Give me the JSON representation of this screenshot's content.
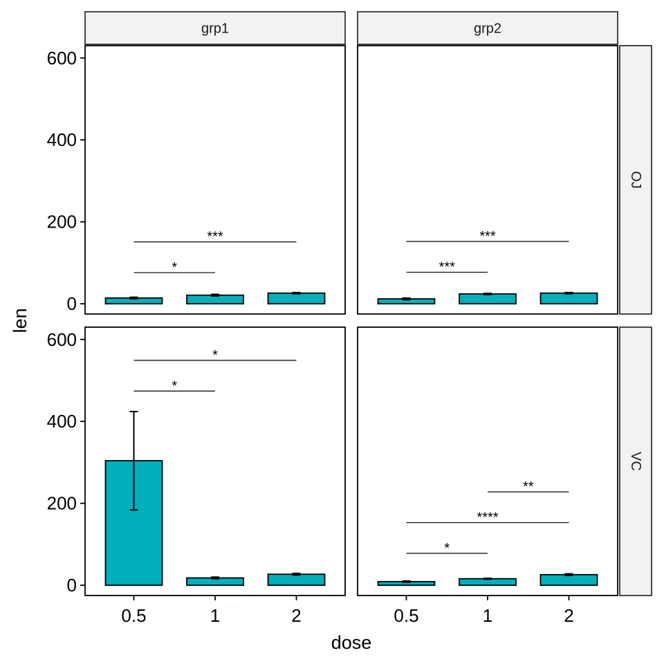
{
  "chart_data": {
    "type": "bar",
    "xlabel": "dose",
    "ylabel": "len",
    "categories": [
      "0.5",
      "1",
      "2"
    ],
    "ylim": [
      -25,
      630
    ],
    "yticks": [
      0,
      200,
      400,
      600
    ],
    "col_facets": [
      "grp1",
      "grp2"
    ],
    "row_facets": [
      "OJ",
      "VC"
    ],
    "bar_color": "#00AFBB",
    "panels": [
      {
        "row": "OJ",
        "col": "grp1",
        "values": [
          14,
          21,
          26
        ],
        "errors": [
          2,
          2,
          1.5
        ],
        "comparisons": [
          {
            "from": "0.5",
            "to": "1",
            "y": 76,
            "label": "*"
          },
          {
            "from": "0.5",
            "to": "2",
            "y": 151,
            "label": "***"
          }
        ]
      },
      {
        "row": "OJ",
        "col": "grp2",
        "values": [
          12,
          24,
          26
        ],
        "errors": [
          2,
          1.5,
          1.5
        ],
        "comparisons": [
          {
            "from": "0.5",
            "to": "1",
            "y": 77,
            "label": "***"
          },
          {
            "from": "0.5",
            "to": "2",
            "y": 152,
            "label": "***"
          }
        ]
      },
      {
        "row": "VC",
        "col": "grp1",
        "values": [
          304,
          18,
          27
        ],
        "errors": [
          120,
          2,
          2
        ],
        "comparisons": [
          {
            "from": "0.5",
            "to": "1",
            "y": 474,
            "label": "*"
          },
          {
            "from": "0.5",
            "to": "2",
            "y": 549,
            "label": "*"
          }
        ]
      },
      {
        "row": "VC",
        "col": "grp2",
        "values": [
          9,
          16,
          26
        ],
        "errors": [
          1.5,
          1,
          2
        ],
        "comparisons": [
          {
            "from": "0.5",
            "to": "1",
            "y": 78,
            "label": "*"
          },
          {
            "from": "0.5",
            "to": "2",
            "y": 153,
            "label": "****"
          },
          {
            "from": "1",
            "to": "2",
            "y": 228,
            "label": "**"
          }
        ]
      }
    ]
  }
}
